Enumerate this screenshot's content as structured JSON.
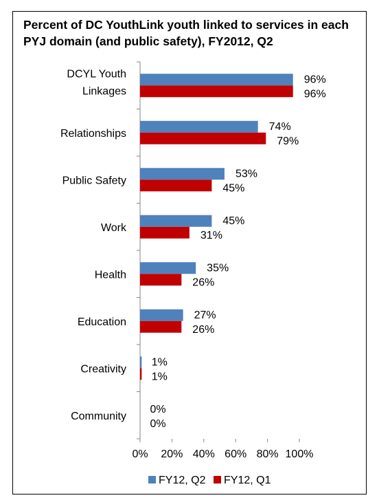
{
  "chart_data": {
    "type": "bar",
    "orientation": "horizontal",
    "title": "Percent of DC YouthLink youth linked to services in each PYJ domain (and public safety), FY2012, Q2",
    "categories": [
      [
        "DCYL Youth",
        "Linkages"
      ],
      [
        "Relationships"
      ],
      [
        "Public Safety"
      ],
      [
        "Work"
      ],
      [
        "Health"
      ],
      [
        "Education"
      ],
      [
        "Creativity"
      ],
      [
        "Community"
      ]
    ],
    "series": [
      {
        "name": "FY12, Q2",
        "color": "#4f81bd",
        "values": [
          96,
          74,
          53,
          45,
          35,
          27,
          1,
          0
        ],
        "labels": [
          "96%",
          "74%",
          "53%",
          "45%",
          "35%",
          "27%",
          "1%",
          "0%"
        ]
      },
      {
        "name": "FY12, Q1",
        "color": "#c00000",
        "values": [
          96,
          79,
          45,
          31,
          26,
          26,
          1,
          0
        ],
        "labels": [
          "96%",
          "79%",
          "45%",
          "31%",
          "26%",
          "26%",
          "1%",
          "0%"
        ]
      }
    ],
    "xlim": [
      0,
      100
    ],
    "xticks": [
      "0%",
      "20%",
      "40%",
      "60%",
      "80%",
      "100%"
    ],
    "grid": false,
    "legend_position": "bottom"
  }
}
